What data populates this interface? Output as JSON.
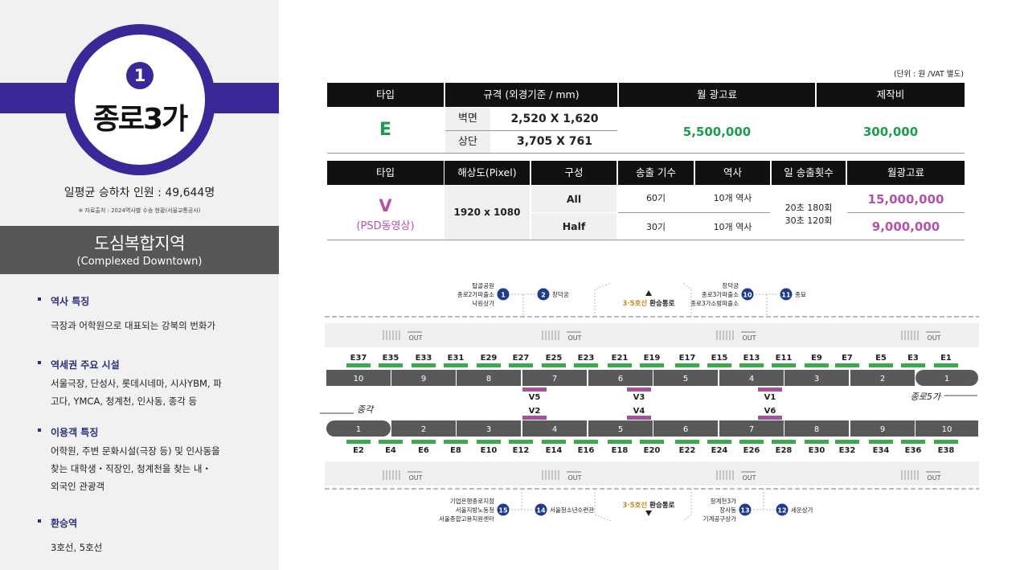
{
  "station": {
    "number": "1",
    "name": "종로3가",
    "daily_riders": "일평균 승하차 인원 : 49,644명",
    "source": "※ 자료출처 : 2024역사별 수송 현황(서울교통공사)",
    "zone_title": "도심복합지역",
    "zone_sub": "(Complexed Downtown)"
  },
  "features": [
    {
      "title": "역사 특징",
      "body": [
        "극장과 어학원으로 대표되는 강북의 번화가"
      ]
    },
    {
      "title": "역세권 주요 시설",
      "body": [
        "서울극장, 단성사, 롯데시네마, 시사YBM, 파",
        "고다, YMCA, 청계천, 인사동, 종각 등"
      ]
    },
    {
      "title": "이용객 특징",
      "body": [
        "어학원, 주변 문화시설(극장 등) 및 인사동을",
        "찾는 대학생・직장인, 청계천을 찾는 내・",
        "외국인 관광객"
      ]
    },
    {
      "title": "환승역",
      "body": [
        "3호선, 5호선"
      ]
    }
  ],
  "unit_note": "(단위 : 원 /VAT 별도)",
  "table1": {
    "headers": [
      "타입",
      "규격 (외경기준 / mm)",
      "월 광고료",
      "제작비"
    ],
    "type": "E",
    "rows": [
      {
        "label": "벽면",
        "size": "2,520 X 1,620"
      },
      {
        "label": "상단",
        "size": "3,705 X 761"
      }
    ],
    "monthly": "5,500,000",
    "production": "300,000"
  },
  "table2": {
    "headers": [
      "타입",
      "해상도(Pixel)",
      "구성",
      "송출 기수",
      "역사",
      "일 송출횟수",
      "월광고료"
    ],
    "type": "V",
    "type_sub": "(PSD동영상)",
    "resolution": "1920 x 1080",
    "rows": [
      {
        "config": "All",
        "units": "60기",
        "stations": "10개 역사",
        "fee": "15,000,000"
      },
      {
        "config": "Half",
        "units": "30기",
        "stations": "10개 역사",
        "fee": "9,000,000"
      }
    ],
    "daily": [
      "20초 180회",
      "30초 120회"
    ]
  },
  "map": {
    "top_exits": [
      {
        "n": "1",
        "label": [
          "탑골공원",
          "종로2가파출소",
          "낙원상가"
        ]
      },
      {
        "n": "2",
        "label": [
          "창덕궁"
        ]
      },
      {
        "n": "10",
        "label": [
          "창덕궁",
          "종로3가파출소",
          "종로3가소방파출소"
        ]
      },
      {
        "n": "11",
        "label": [
          "종묘"
        ]
      }
    ],
    "bottom_exits": [
      {
        "n": "15",
        "label": [
          "기업은행종로지점",
          "서울지방노동청",
          "서울종합고용지원센터"
        ]
      },
      {
        "n": "14",
        "label": [
          "서울청소년수련관"
        ]
      },
      {
        "n": "13",
        "label": [
          "청계천3가",
          "장사동",
          "기계공구상가"
        ]
      },
      {
        "n": "12",
        "label": [
          "세운상가"
        ]
      }
    ],
    "transfer_prefix": "3·5호선",
    "transfer_suffix": " 환승통로",
    "out": "OUT",
    "dir_left": "종각",
    "dir_right": "종로5가",
    "top_codes": [
      "E37",
      "E35",
      "E33",
      "E31",
      "E29",
      "E27",
      "E25",
      "E23",
      "E21",
      "E19",
      "E17",
      "E15",
      "E13",
      "E11",
      "E9",
      "E7",
      "E5",
      "E3",
      "E1"
    ],
    "bottom_codes": [
      "E2",
      "E4",
      "E6",
      "E8",
      "E10",
      "E12",
      "E14",
      "E16",
      "E18",
      "E20",
      "E22",
      "E24",
      "E26",
      "E28",
      "E30",
      "E32",
      "E34",
      "E36",
      "E38"
    ],
    "top_cars": [
      "10",
      "9",
      "8",
      "7",
      "6",
      "5",
      "4",
      "3",
      "2",
      "1"
    ],
    "bottom_cars": [
      "1",
      "2",
      "3",
      "4",
      "5",
      "6",
      "7",
      "8",
      "9",
      "10"
    ],
    "v_top": [
      "V5",
      "V3",
      "V1"
    ],
    "v_bottom": [
      "V2",
      "V4",
      "V6"
    ]
  },
  "colors": {
    "purple": "#3b2797",
    "green": "#3aaa4a",
    "magenta": "#a452a0",
    "navy": "#1f3b8c",
    "orange": "#c98a1f"
  }
}
